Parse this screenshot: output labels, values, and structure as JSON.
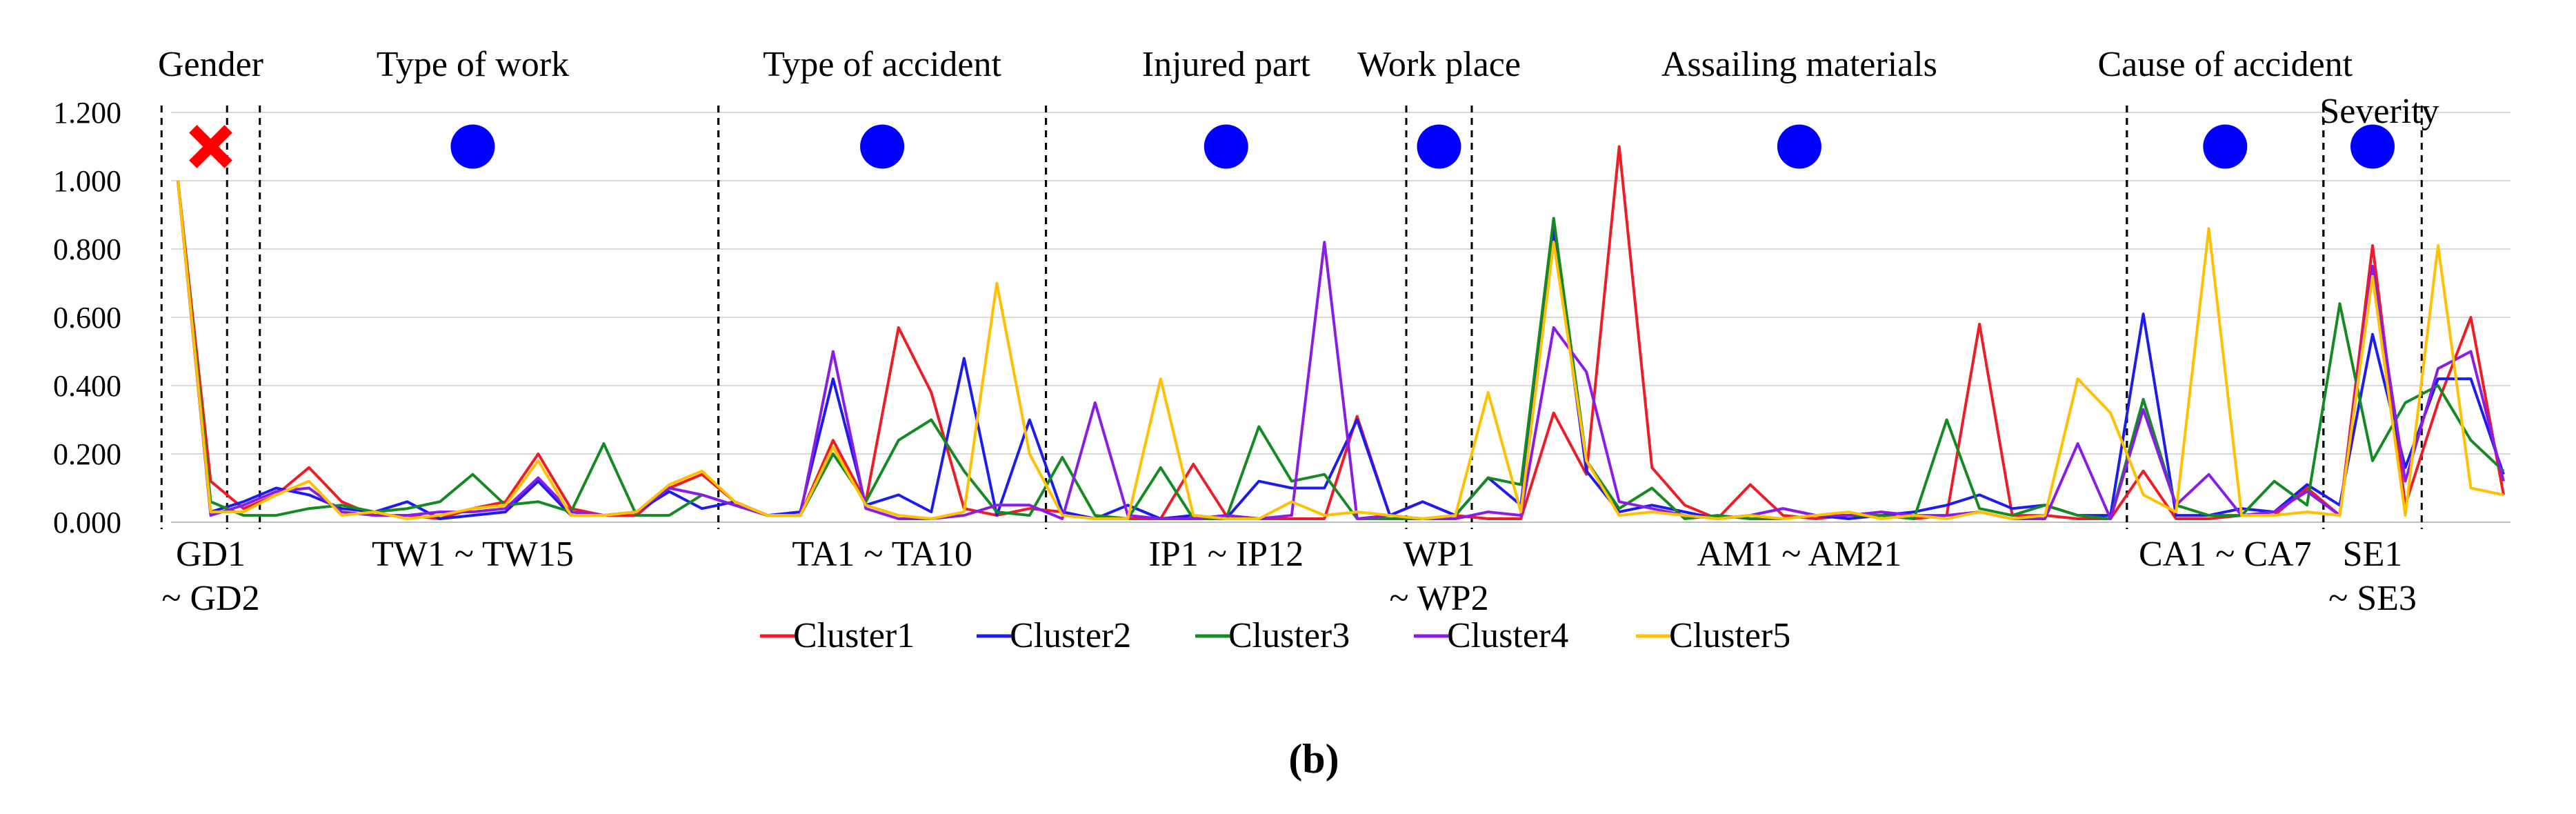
{
  "chart_data": {
    "type": "line",
    "title": "",
    "caption": "(b)",
    "xlabel": "",
    "ylabel": "",
    "ylim": [
      0,
      1.2
    ],
    "y_ticks": [
      "1.200",
      "1.000",
      "0.800",
      "0.600",
      "0.400",
      "0.200",
      "0.000"
    ],
    "x_points": 72,
    "groups": [
      {
        "name": "Gender",
        "range_label": "GD1 ~ GD2",
        "marker": "cross",
        "start": 0,
        "end": 2
      },
      {
        "name": "Type of work",
        "range_label": "TW1 ~ TW15",
        "marker": "dot",
        "start": 2,
        "end": 16
      },
      {
        "name": "Type of accident",
        "range_label": "TA1 ~ TA10",
        "marker": "dot",
        "start": 17,
        "end": 26
      },
      {
        "name": "Injured part",
        "range_label": "IP1 ~ IP12",
        "marker": "dot",
        "start": 27,
        "end": 37
      },
      {
        "name": "Work place",
        "range_label": "WP1 ~ WP2",
        "marker": "dot",
        "start": 38,
        "end": 39
      },
      {
        "name": "Assailing materials",
        "range_label": "AM1 ~ AM21",
        "marker": "dot",
        "start": 40,
        "end": 59
      },
      {
        "name": "Cause of accident",
        "range_label": "CA1 ~ CA7",
        "marker": "dot",
        "start": 60,
        "end": 65
      },
      {
        "name": "Severity",
        "range_label": "SE1 ~ SE3",
        "marker": "dot",
        "start": 66,
        "end": 68
      }
    ],
    "series": [
      {
        "name": "Cluster1",
        "color": "#ee1c25",
        "values": [
          1.0,
          0.12,
          0.04,
          0.08,
          0.16,
          0.06,
          0.02,
          0.02,
          0.01,
          0.04,
          0.06,
          0.2,
          0.04,
          0.02,
          0.02,
          0.1,
          0.14,
          0.06,
          0.02,
          0.02,
          0.24,
          0.06,
          0.57,
          0.38,
          0.04,
          0.02,
          0.04,
          0.03,
          0.01,
          0.01,
          0.01,
          0.17,
          0.02,
          0.01,
          0.01,
          0.01,
          0.31,
          0.02,
          0.06,
          0.02,
          0.01,
          0.01,
          0.32,
          0.14,
          1.1,
          0.16,
          0.05,
          0.01,
          0.11,
          0.02,
          0.01,
          0.02,
          0.02,
          0.01,
          0.02,
          0.58,
          0.02,
          0.02,
          0.01,
          0.01,
          0.15,
          0.01,
          0.01,
          0.02,
          0.02,
          0.1,
          0.02,
          0.81,
          0.05,
          0.35,
          0.6,
          0.08
        ]
      },
      {
        "name": "Cluster2",
        "color": "#1c1cee",
        "values": [
          1.0,
          0.03,
          0.06,
          0.1,
          0.08,
          0.04,
          0.03,
          0.06,
          0.01,
          0.02,
          0.03,
          0.12,
          0.02,
          0.02,
          0.03,
          0.09,
          0.04,
          0.06,
          0.02,
          0.03,
          0.42,
          0.05,
          0.08,
          0.03,
          0.48,
          0.02,
          0.3,
          0.03,
          0.01,
          0.05,
          0.01,
          0.02,
          0.01,
          0.12,
          0.1,
          0.1,
          0.3,
          0.02,
          0.06,
          0.02,
          0.13,
          0.05,
          0.86,
          0.15,
          0.03,
          0.05,
          0.03,
          0.01,
          0.02,
          0.04,
          0.02,
          0.01,
          0.02,
          0.03,
          0.05,
          0.08,
          0.04,
          0.05,
          0.02,
          0.02,
          0.61,
          0.02,
          0.02,
          0.04,
          0.03,
          0.11,
          0.05,
          0.55,
          0.16,
          0.42,
          0.42,
          0.14
        ]
      },
      {
        "name": "Cluster3",
        "color": "#138a22",
        "values": [
          1.0,
          0.06,
          0.02,
          0.02,
          0.04,
          0.05,
          0.03,
          0.04,
          0.06,
          0.14,
          0.05,
          0.06,
          0.03,
          0.23,
          0.02,
          0.02,
          0.08,
          0.05,
          0.02,
          0.02,
          0.2,
          0.06,
          0.24,
          0.3,
          0.15,
          0.03,
          0.02,
          0.19,
          0.02,
          0.01,
          0.16,
          0.01,
          0.01,
          0.28,
          0.12,
          0.14,
          0.01,
          0.01,
          0.01,
          0.02,
          0.13,
          0.11,
          0.89,
          0.18,
          0.04,
          0.1,
          0.01,
          0.02,
          0.01,
          0.01,
          0.02,
          0.02,
          0.02,
          0.01,
          0.3,
          0.04,
          0.02,
          0.05,
          0.02,
          0.01,
          0.36,
          0.05,
          0.02,
          0.02,
          0.12,
          0.05,
          0.64,
          0.18,
          0.35,
          0.4,
          0.24,
          0.15
        ]
      },
      {
        "name": "Cluster4",
        "color": "#8a1ce8",
        "values": [
          1.0,
          0.02,
          0.05,
          0.09,
          0.1,
          0.03,
          0.02,
          0.02,
          0.03,
          0.03,
          0.04,
          0.13,
          0.03,
          0.02,
          0.03,
          0.1,
          0.08,
          0.05,
          0.02,
          0.02,
          0.5,
          0.04,
          0.01,
          0.01,
          0.02,
          0.05,
          0.05,
          0.01,
          0.35,
          0.02,
          0.01,
          0.01,
          0.02,
          0.01,
          0.02,
          0.82,
          0.01,
          0.02,
          0.01,
          0.01,
          0.03,
          0.02,
          0.57,
          0.44,
          0.06,
          0.04,
          0.02,
          0.01,
          0.02,
          0.04,
          0.02,
          0.02,
          0.03,
          0.02,
          0.02,
          0.03,
          0.01,
          0.01,
          0.23,
          0.01,
          0.33,
          0.05,
          0.14,
          0.02,
          0.03,
          0.09,
          0.02,
          0.75,
          0.12,
          0.45,
          0.5,
          0.12
        ]
      },
      {
        "name": "Cluster5",
        "color": "#ffc000",
        "values": [
          1.0,
          0.03,
          0.03,
          0.08,
          0.12,
          0.02,
          0.03,
          0.01,
          0.02,
          0.04,
          0.05,
          0.18,
          0.02,
          0.02,
          0.03,
          0.11,
          0.15,
          0.06,
          0.02,
          0.02,
          0.22,
          0.05,
          0.02,
          0.01,
          0.03,
          0.7,
          0.2,
          0.02,
          0.01,
          0.01,
          0.42,
          0.02,
          0.01,
          0.01,
          0.06,
          0.02,
          0.03,
          0.02,
          0.01,
          0.02,
          0.38,
          0.03,
          0.82,
          0.18,
          0.02,
          0.03,
          0.02,
          0.01,
          0.02,
          0.01,
          0.02,
          0.03,
          0.01,
          0.02,
          0.01,
          0.03,
          0.01,
          0.02,
          0.42,
          0.32,
          0.08,
          0.03,
          0.86,
          0.02,
          0.02,
          0.03,
          0.02,
          0.72,
          0.02,
          0.81,
          0.1,
          0.08
        ]
      }
    ]
  }
}
